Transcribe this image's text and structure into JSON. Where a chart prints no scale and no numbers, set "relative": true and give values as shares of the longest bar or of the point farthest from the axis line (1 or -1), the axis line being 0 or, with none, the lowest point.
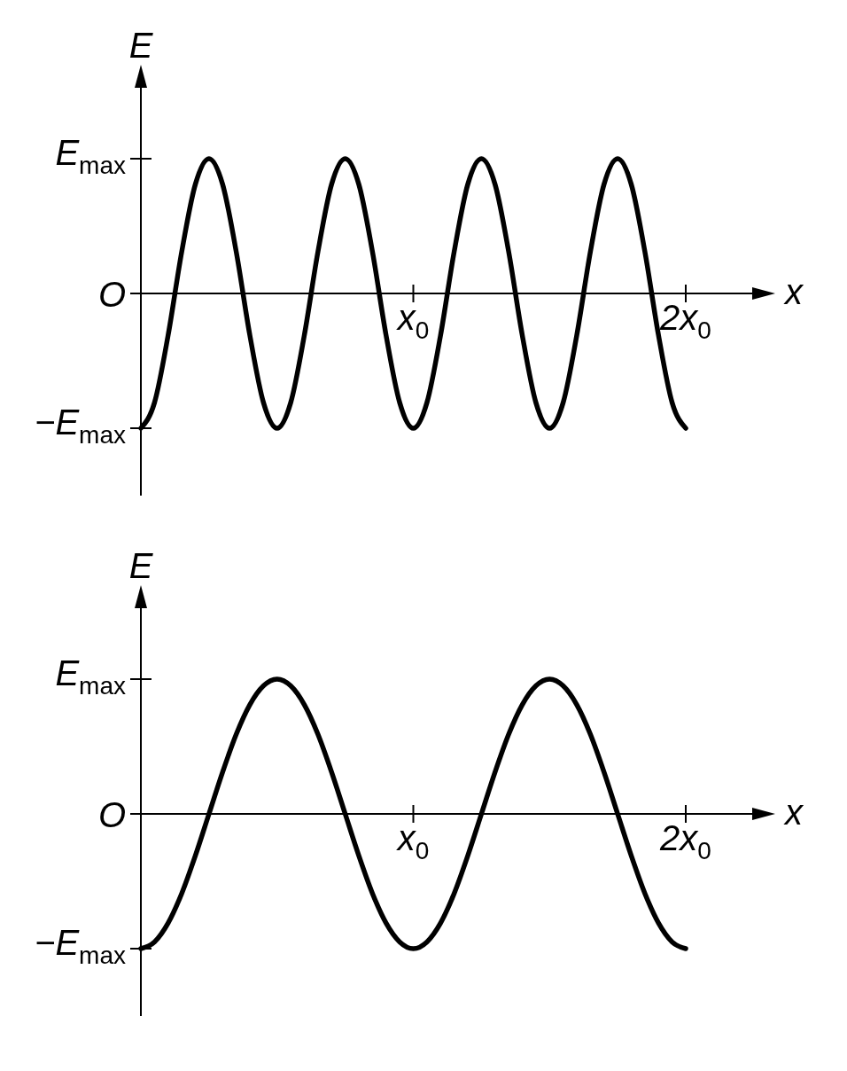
{
  "chart_data": [
    {
      "type": "line",
      "relative": true,
      "xlabel": "x",
      "ylabel": "E",
      "categories": [
        null,
        null,
        null,
        null,
        null,
        null,
        null,
        null,
        null,
        null,
        null,
        null,
        null,
        null,
        null,
        null,
        null,
        null,
        null,
        null,
        "x$_{0}$",
        null,
        null,
        null,
        null,
        null,
        null,
        null,
        null,
        null,
        null,
        null,
        null,
        null,
        null,
        null,
        null,
        null,
        null,
        null,
        "2x$_{0}$"
      ],
      "annotations": [
        "E$_{max}$",
        "O",
        "−E$_{max}$"
      ],
      "series": [
        {
          "color": "#000000",
          "values": [
            -1,
            -0.81,
            -0.31,
            0.31,
            0.81,
            1,
            0.81,
            0.31,
            -0.31,
            -0.81,
            -1,
            -0.81,
            -0.31,
            0.31,
            0.81,
            1,
            0.81,
            0.31,
            -0.31,
            -0.81,
            -1,
            -0.81,
            -0.31,
            0.31,
            0.81,
            1,
            0.81,
            0.31,
            -0.31,
            -0.81,
            -1,
            -0.81,
            -0.31,
            0.31,
            0.81,
            1,
            0.81,
            0.31,
            -0.31,
            -0.81,
            -1
          ]
        }
      ]
    },
    {
      "type": "line",
      "relative": true,
      "xlabel": "x",
      "ylabel": "E",
      "categories": [
        null,
        null,
        null,
        null,
        null,
        null,
        null,
        null,
        null,
        null,
        null,
        null,
        null,
        null,
        null,
        null,
        null,
        null,
        null,
        null,
        "x$_{0}$",
        null,
        null,
        null,
        null,
        null,
        null,
        null,
        null,
        null,
        null,
        null,
        null,
        null,
        null,
        null,
        null,
        null,
        null,
        null,
        "2x$_{0}$"
      ],
      "annotations": [
        "E$_{max}$",
        "O",
        "−E$_{max}$"
      ],
      "series": [
        {
          "color": "#000000",
          "values": [
            -1,
            -0.95,
            -0.81,
            -0.59,
            -0.31,
            0,
            0.31,
            0.59,
            0.81,
            0.95,
            1,
            0.95,
            0.81,
            0.59,
            0.31,
            0,
            -0.31,
            -0.59,
            -0.81,
            -0.95,
            -1,
            -0.95,
            -0.81,
            -0.59,
            -0.31,
            0,
            0.31,
            0.59,
            0.81,
            0.95,
            1,
            0.95,
            0.81,
            0.59,
            0.31,
            0,
            -0.31,
            -0.59,
            -0.81,
            -0.95,
            -1
          ]
        }
      ]
    }
  ]
}
